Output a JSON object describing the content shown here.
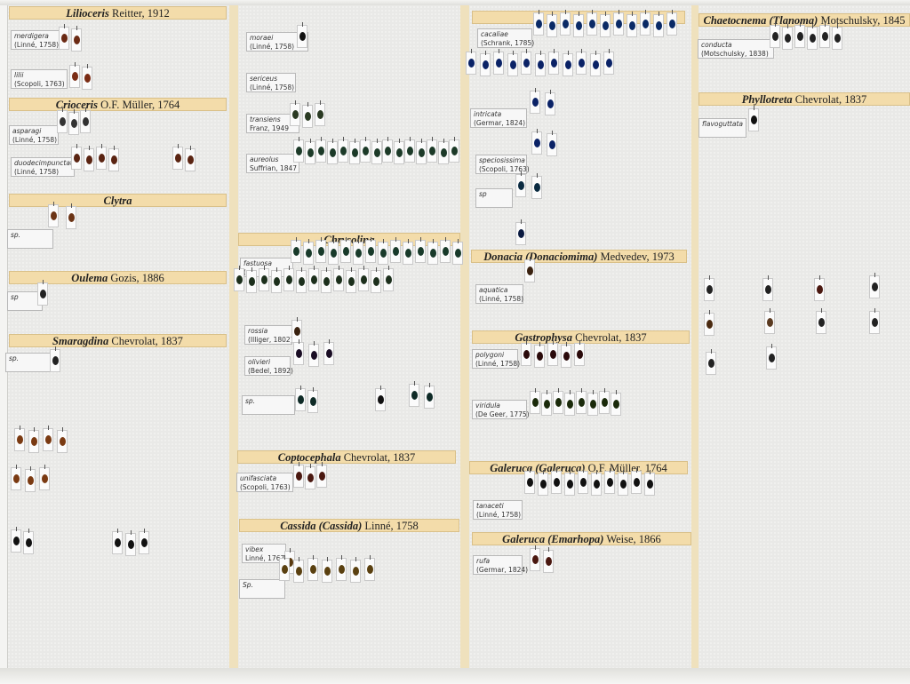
{
  "headers": [
    {
      "genus": "Lilioceris",
      "author": "Reitter, 1912"
    },
    {
      "genus": "Crioceris",
      "author": "O.F. Müller, 1764"
    },
    {
      "genus": "Clytra",
      "author": ""
    },
    {
      "genus": "Oulema",
      "author": "Gozis, 1886"
    },
    {
      "genus": "Smaragdina",
      "author": "Chevrolat, 1837"
    },
    {
      "genus": "Chrysolina",
      "author": ""
    },
    {
      "genus": "Coptocephala",
      "author": "Chevrolat, 1837"
    },
    {
      "genus": "Cassida (Cassida)",
      "author": "Linné, 1758"
    },
    {
      "genus": "",
      "author": ""
    },
    {
      "genus": "Donacia (Donaciomima)",
      "author": "Medvedev, 1973"
    },
    {
      "genus": "Gastrophysa",
      "author": "Chevrolat, 1837"
    },
    {
      "genus": "Galeruca (Galeruca)",
      "author": "O.F. Müller, 1764"
    },
    {
      "genus": "Galeruca (Emarhopa)",
      "author": "Weise, 1866"
    },
    {
      "genus": "Chaetocnema (Tlanoma)",
      "author": "Motschulsky, 1845"
    },
    {
      "genus": "Phyllotreta",
      "author": "Chevrolat, 1837"
    }
  ],
  "labels": [
    {
      "species": "merdigera",
      "author": "(Linné, 1758)"
    },
    {
      "species": "lilii",
      "author": "(Scopoli, 1763)"
    },
    {
      "species": "asparagi",
      "author": "(Linné, 1758)"
    },
    {
      "species": "duodecimpunctata",
      "author": "(Linné, 1758)"
    },
    {
      "species": "sp.",
      "author": ""
    },
    {
      "species": "sp",
      "author": ""
    },
    {
      "species": "sp.",
      "author": ""
    },
    {
      "species": "moraei",
      "author": "(Linné, 1758)"
    },
    {
      "species": "sericeus",
      "author": "(Linné, 1758)"
    },
    {
      "species": "transiens",
      "author": "Franz, 1949"
    },
    {
      "species": "aureolus",
      "author": "Suffrian, 1847"
    },
    {
      "species": "fastuosa",
      "author": "(…"
    },
    {
      "species": "rossia",
      "author": "(Illiger, 1802)"
    },
    {
      "species": "olivieri",
      "author": "(Bedel, 1892)"
    },
    {
      "species": "sp.",
      "author": ""
    },
    {
      "species": "unifasciata",
      "author": "(Scopoli, 1763)"
    },
    {
      "species": "vibex",
      "author": "Linné, 1767"
    },
    {
      "species": "Sp.",
      "author": ""
    },
    {
      "species": "cacaliae",
      "author": "(Schrank, 1785)"
    },
    {
      "species": "intricata",
      "author": "(Germar, 1824)"
    },
    {
      "species": "speciosissima",
      "author": "(Scopoli, 1763)"
    },
    {
      "species": "sp",
      "author": ""
    },
    {
      "species": "aquatica",
      "author": "(Linné, 1758)"
    },
    {
      "species": "polygoni",
      "author": "(Linné, 1758)"
    },
    {
      "species": "viridula",
      "author": "(De Geer, 1775)"
    },
    {
      "species": "tanaceti",
      "author": "(Linné, 1758)"
    },
    {
      "species": "rufa",
      "author": "(Germar, 1824)"
    },
    {
      "species": "conducta",
      "author": "(Motschulsky, 1838)"
    },
    {
      "species": "flavoguttata",
      "author": ""
    }
  ],
  "colors": {
    "header": "#f3dcaa",
    "foam": "#e9e9e7",
    "divider": "#efe1bd",
    "label": "#f7f7f7"
  }
}
